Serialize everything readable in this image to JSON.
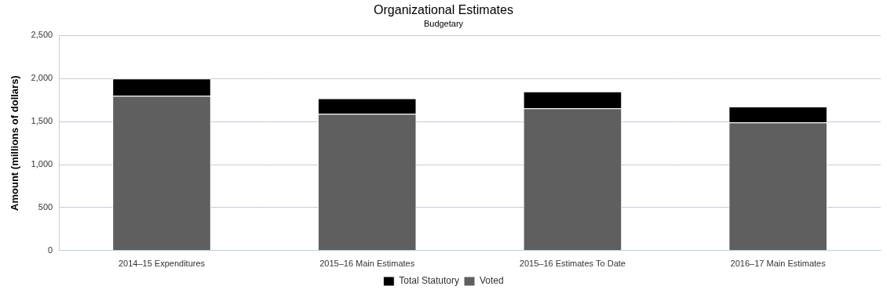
{
  "chart_data": {
    "type": "bar",
    "title": "Organizational Estimates",
    "subtitle": "Budgetary",
    "y_label": "Amount (millions of dollars)",
    "categories": [
      "2014–15 Expenditures",
      "2015–16 Main Estimates",
      "2015–16 Estimates To Date",
      "2016–17 Main Estimates"
    ],
    "series": [
      {
        "name": "Total Statutory",
        "color": "#000000",
        "values": [
          200,
          180,
          195,
          185
        ]
      },
      {
        "name": "Voted",
        "color": "#5f5f5f",
        "values": [
          1800,
          1590,
          1655,
          1490
        ]
      }
    ],
    "stacked": true,
    "ylim": [
      0,
      2500
    ],
    "yticks": [
      0,
      500,
      {
        "value": 1000,
        "label": "1,000"
      },
      {
        "value": 1500,
        "label": "1,500"
      },
      {
        "value": 2000,
        "label": "2,000"
      },
      {
        "value": 2500,
        "label": "2,500"
      }
    ],
    "grid": true,
    "legend": "bottom"
  }
}
